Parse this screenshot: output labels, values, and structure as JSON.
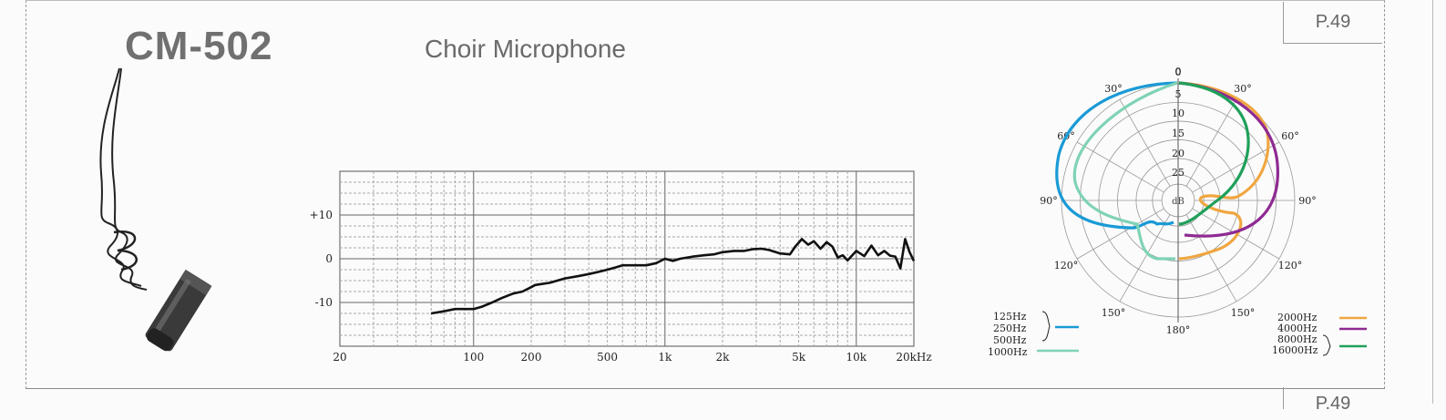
{
  "page": {
    "label": "P.49",
    "next_label": "P.49"
  },
  "product": {
    "model": "CM-502",
    "name": "Choir Microphone"
  },
  "chart_data": [
    {
      "type": "line",
      "xscale": "log",
      "xlim": [
        20,
        20000
      ],
      "ylim": [
        -20,
        20
      ],
      "x_tick_labels": [
        "20",
        "100",
        "200",
        "500",
        "1k",
        "2k",
        "5k",
        "10k",
        "20kHz"
      ],
      "x_tick_values": [
        20,
        100,
        200,
        500,
        1000,
        2000,
        5000,
        10000,
        20000
      ],
      "y_tick_labels": [
        "+10",
        "0",
        "-10"
      ],
      "y_tick_values": [
        10,
        0,
        -10
      ],
      "grid": true,
      "x": [
        60,
        70,
        80,
        90,
        100,
        110,
        125,
        140,
        160,
        180,
        200,
        210,
        250,
        300,
        350,
        400,
        450,
        500,
        550,
        600,
        700,
        800,
        900,
        1000,
        1100,
        1200,
        1400,
        1600,
        1800,
        2000,
        2300,
        2600,
        2900,
        3200,
        3500,
        4000,
        4500,
        4800,
        5200,
        5600,
        6000,
        6500,
        7000,
        7500,
        8000,
        8500,
        9000,
        10000,
        11000,
        12000,
        13000,
        14000,
        15000,
        16000,
        17000,
        18000,
        19000,
        20000
      ],
      "y": [
        -12.5,
        -12,
        -11.5,
        -11.5,
        -11.5,
        -11,
        -10,
        -9,
        -8,
        -7.5,
        -6.5,
        -6,
        -5.5,
        -4.5,
        -4,
        -3.5,
        -3,
        -2.5,
        -2,
        -1.5,
        -1.5,
        -1.5,
        -1,
        0,
        -0.5,
        0,
        0.5,
        0.8,
        1,
        1.5,
        1.8,
        1.8,
        2.2,
        2.3,
        2.0,
        1.2,
        1.0,
        2.8,
        4.5,
        3.2,
        4.0,
        2.3,
        3.8,
        2.8,
        0.3,
        0.8,
        -0.4,
        1.8,
        0.6,
        3.0,
        0.8,
        1.8,
        0.7,
        0.5,
        -2.2,
        4.5,
        1.5,
        -0.5
      ]
    },
    {
      "type": "polar",
      "angle_labels": [
        "0",
        "30°",
        "30°",
        "60°",
        "60°",
        "90°",
        "90°",
        "120°",
        "120°",
        "150°",
        "150°",
        "180°"
      ],
      "radial_labels": [
        "0",
        "5",
        "10",
        "15",
        "20",
        "25",
        "dB"
      ],
      "series": [
        {
          "name": "125Hz",
          "color": "#1a9ad6"
        },
        {
          "name": "250Hz",
          "color": "#1a9ad6"
        },
        {
          "name": "500Hz",
          "color": "#1a9ad6"
        },
        {
          "name": "1000Hz",
          "color": "#7fd3b4"
        },
        {
          "name": "2000Hz",
          "color": "#f0a640"
        },
        {
          "name": "4000Hz",
          "color": "#8e2a92"
        },
        {
          "name": "8000Hz",
          "color": "#1fa05a"
        },
        {
          "name": "16000Hz",
          "color": "#1fa05a"
        }
      ]
    }
  ]
}
